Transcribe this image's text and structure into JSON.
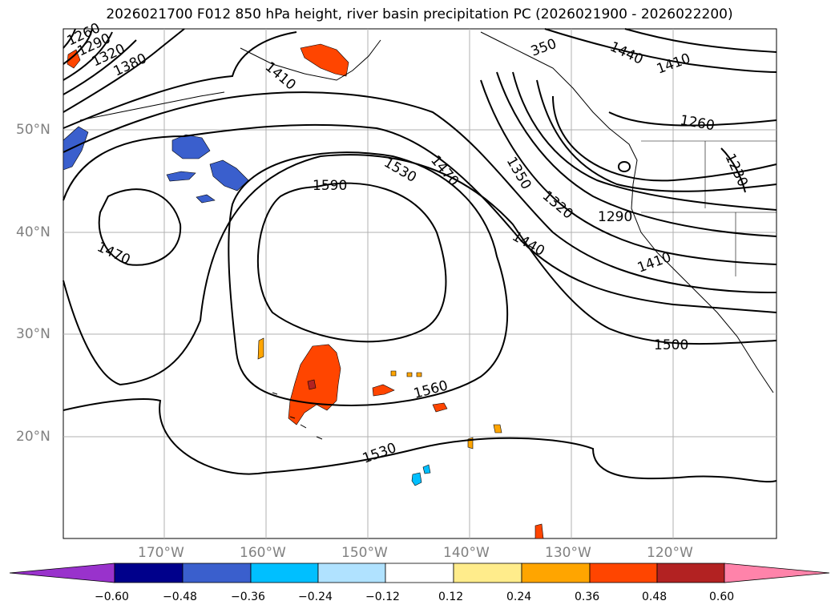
{
  "title": "2026021700 F012 850 hPa height, river basin precipitation PC (2026021900 - 2026022200)",
  "lat_labels": [
    "50°N",
    "40°N",
    "30°N",
    "20°N"
  ],
  "lon_labels": [
    "170°W",
    "160°W",
    "150°W",
    "140°W",
    "130°W",
    "120°W"
  ],
  "contour_labels": [
    "1260",
    "1290",
    "1320",
    "1380",
    "1410",
    "1590",
    "1530",
    "1470",
    "1470",
    "350",
    "1440",
    "1410",
    "1260",
    "1230",
    "1350",
    "1320",
    "1290",
    "1440",
    "1410",
    "1500",
    "1560",
    "1530"
  ],
  "colorbar": {
    "ticks": [
      "−0.60",
      "−0.48",
      "−0.36",
      "−0.24",
      "−0.12",
      "0.12",
      "0.24",
      "0.36",
      "0.48",
      "0.60"
    ],
    "colors": [
      "#9932cc",
      "#00008b",
      "#3a5fcd",
      "#00bfff",
      "#b0e2ff",
      "#ffffff",
      "#ffec8b",
      "#ffa500",
      "#ff4500",
      "#b22222",
      "#ff83aa"
    ]
  }
}
